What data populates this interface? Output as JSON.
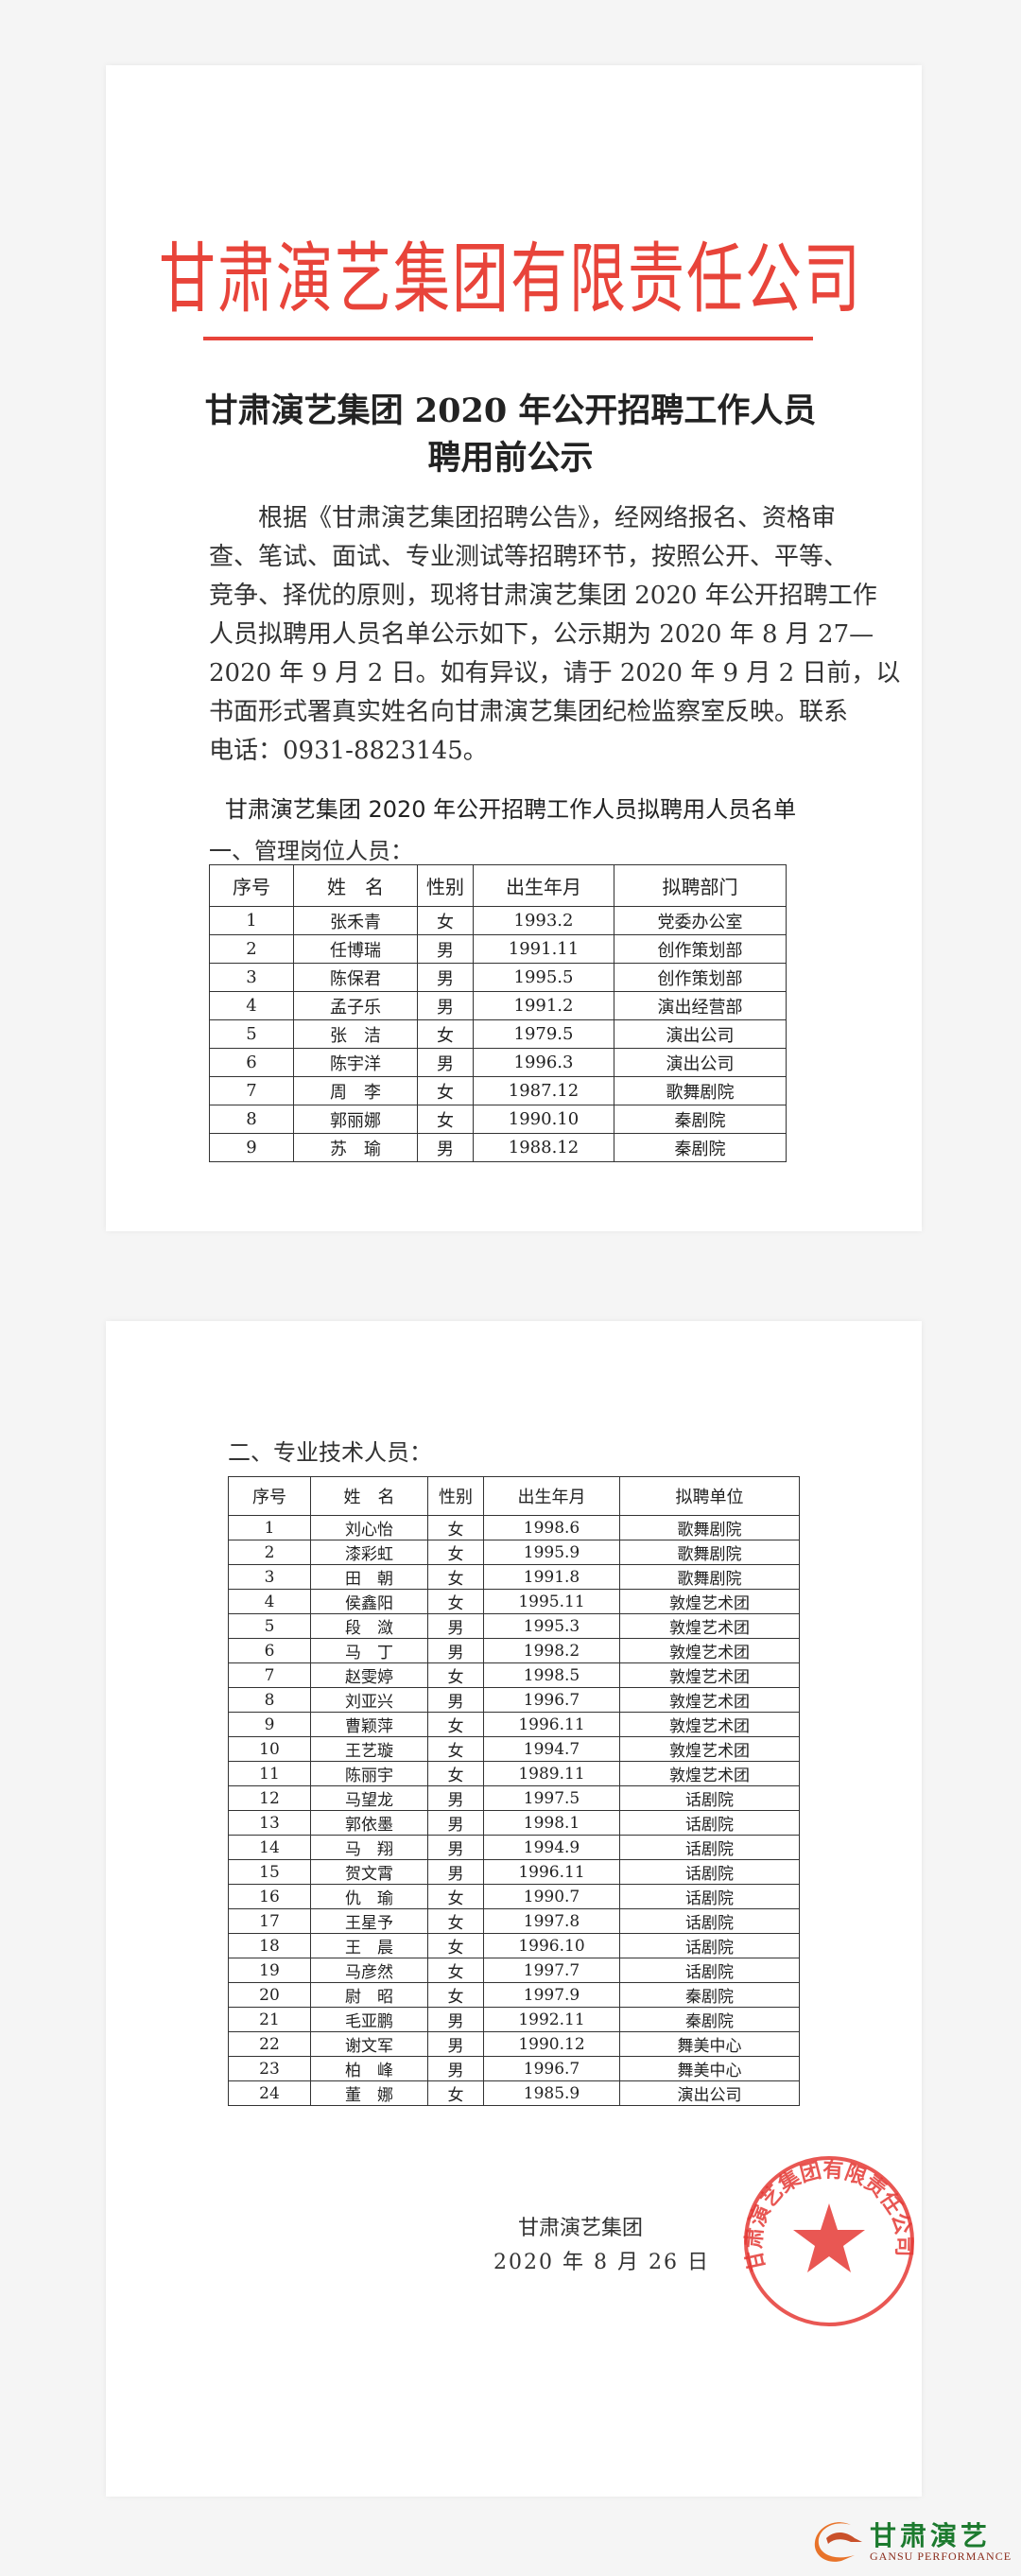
{
  "letterhead": {
    "company": "甘肃演艺集团有限责任公司",
    "color": "#e8443a"
  },
  "heading": {
    "line1": "甘肃演艺集团 2020 年公开招聘工作人员",
    "line2": "聘用前公示"
  },
  "body": {
    "lines": [
      "根据《甘肃演艺集团招聘公告》，经网络报名、资格审",
      "查、笔试、面试、专业测试等招聘环节，按照公开、平等、",
      "竞争、择优的原则，现将甘肃演艺集团 2020 年公开招聘工作",
      "人员拟聘用人员名单公示如下，公示期为 2020 年 8 月 27—",
      "2020 年 9 月 2 日。如有异议，请于 2020 年 9 月 2 日前，以",
      "书面形式署真实姓名向甘肃演艺集团纪检监察室反映。联系",
      "电话：0931-8823145。"
    ]
  },
  "list_title": "甘肃演艺集团 2020 年公开招聘工作人员拟聘用人员名单",
  "management": {
    "section_title": "一、管理岗位人员：",
    "headers": [
      "序号",
      "姓　名",
      "性别",
      "出生年月",
      "拟聘部门"
    ],
    "rows": [
      [
        "1",
        "张禾青",
        "女",
        "1993.2",
        "党委办公室"
      ],
      [
        "2",
        "任博瑞",
        "男",
        "1991.11",
        "创作策划部"
      ],
      [
        "3",
        "陈保君",
        "男",
        "1995.5",
        "创作策划部"
      ],
      [
        "4",
        "孟子乐",
        "男",
        "1991.2",
        "演出经营部"
      ],
      [
        "5",
        "张　洁",
        "女",
        "1979.5",
        "演出公司"
      ],
      [
        "6",
        "陈宇洋",
        "男",
        "1996.3",
        "演出公司"
      ],
      [
        "7",
        "周　李",
        "女",
        "1987.12",
        "歌舞剧院"
      ],
      [
        "8",
        "郭丽娜",
        "女",
        "1990.10",
        "秦剧院"
      ],
      [
        "9",
        "苏　瑜",
        "男",
        "1988.12",
        "秦剧院"
      ]
    ]
  },
  "technical": {
    "section_title": "二、专业技术人员：",
    "headers": [
      "序号",
      "姓　名",
      "性别",
      "出生年月",
      "拟聘单位"
    ],
    "rows": [
      [
        "1",
        "刘心怡",
        "女",
        "1998.6",
        "歌舞剧院"
      ],
      [
        "2",
        "漆彩虹",
        "女",
        "1995.9",
        "歌舞剧院"
      ],
      [
        "3",
        "田　朝",
        "女",
        "1991.8",
        "歌舞剧院"
      ],
      [
        "4",
        "侯鑫阳",
        "女",
        "1995.11",
        "敦煌艺术团"
      ],
      [
        "5",
        "段　潋",
        "男",
        "1995.3",
        "敦煌艺术团"
      ],
      [
        "6",
        "马　丁",
        "男",
        "1998.2",
        "敦煌艺术团"
      ],
      [
        "7",
        "赵雯婷",
        "女",
        "1998.5",
        "敦煌艺术团"
      ],
      [
        "8",
        "刘亚兴",
        "男",
        "1996.7",
        "敦煌艺术团"
      ],
      [
        "9",
        "曹颖萍",
        "女",
        "1996.11",
        "敦煌艺术团"
      ],
      [
        "10",
        "王艺璇",
        "女",
        "1994.7",
        "敦煌艺术团"
      ],
      [
        "11",
        "陈丽宇",
        "女",
        "1989.11",
        "敦煌艺术团"
      ],
      [
        "12",
        "马望龙",
        "男",
        "1997.5",
        "话剧院"
      ],
      [
        "13",
        "郭依墨",
        "男",
        "1998.1",
        "话剧院"
      ],
      [
        "14",
        "马　翔",
        "男",
        "1994.9",
        "话剧院"
      ],
      [
        "15",
        "贺文霄",
        "男",
        "1996.11",
        "话剧院"
      ],
      [
        "16",
        "仇　瑜",
        "女",
        "1990.7",
        "话剧院"
      ],
      [
        "17",
        "王星予",
        "女",
        "1997.8",
        "话剧院"
      ],
      [
        "18",
        "王　晨",
        "女",
        "1996.10",
        "话剧院"
      ],
      [
        "19",
        "马彦然",
        "女",
        "1997.7",
        "话剧院"
      ],
      [
        "20",
        "尉　昭",
        "女",
        "1997.9",
        "秦剧院"
      ],
      [
        "21",
        "毛亚鹏",
        "男",
        "1992.11",
        "秦剧院"
      ],
      [
        "22",
        "谢文军",
        "男",
        "1990.12",
        "舞美中心"
      ],
      [
        "23",
        "柏　峰",
        "男",
        "1996.7",
        "舞美中心"
      ],
      [
        "24",
        "董　娜",
        "女",
        "1985.9",
        "演出公司"
      ]
    ]
  },
  "signature": {
    "org": "甘肃演艺集团",
    "date": "2020 年 8 月 26 日"
  },
  "stamp": {
    "text": "甘肃演艺集团有限责任公司",
    "color": "#e53935"
  },
  "logo": {
    "cn": "甘肃演艺",
    "en": "GANSU PERFORMANCE",
    "green": "#1c7a2e",
    "orange": "#e8732a"
  }
}
